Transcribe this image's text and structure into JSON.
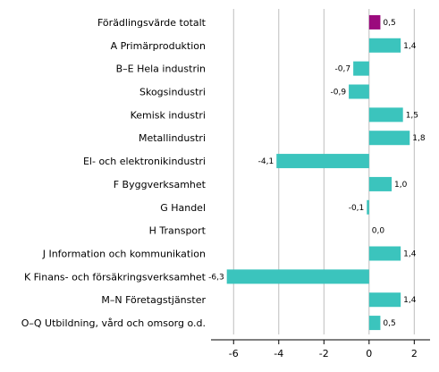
{
  "chart_data": {
    "type": "bar",
    "orientation": "horizontal",
    "categories": [
      "Förädlingsvärde totalt",
      "A Primärproduktion",
      "B–E Hela industrin",
      "Skogsindustri",
      "Kemisk industri",
      "Metallindustri",
      "El- och elektronikindustri",
      "F Byggverksamhet",
      "G Handel",
      "H Transport",
      "J Information och kommunikation",
      "K Finans- och försäkringsverksamhet",
      "M–N Företagstjänster",
      "O–Q Utbildning, vård och omsorg o.d."
    ],
    "values": [
      0.5,
      1.4,
      -0.7,
      -0.9,
      1.5,
      1.8,
      -4.1,
      1.0,
      -0.1,
      0.0,
      1.4,
      -6.3,
      1.4,
      0.5
    ],
    "data_labels": [
      "0,5",
      "1,4",
      "-0,7",
      "-0,9",
      "1,5",
      "1,8",
      "-4,1",
      "1,0",
      "-0,1",
      "0,0",
      "1,4",
      "-6,3",
      "1,4",
      "0,5"
    ],
    "xlim": [
      -7,
      2.7
    ],
    "xticks": [
      -6,
      -4,
      -2,
      0,
      2
    ],
    "xtick_labels": [
      "-6",
      "-4",
      "-2",
      "0",
      "2"
    ],
    "title": "",
    "xlabel": "",
    "ylabel": "",
    "grid": "vertical",
    "legend": "none",
    "colors": {
      "highlight": "#9b0a7d",
      "bar": "#3bc4bd",
      "grid": "#bdbdbd",
      "axis": "#000000"
    }
  }
}
